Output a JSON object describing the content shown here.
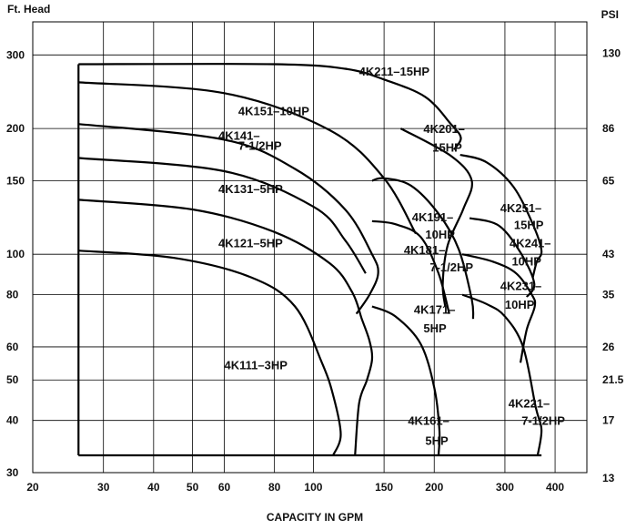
{
  "chart_data": {
    "type": "line",
    "xlabel": "CAPACITY IN GPM",
    "ylabel_left": "Ft. Head",
    "ylabel_right": "PSI",
    "x_scale": "log",
    "y_scale": "log",
    "xlim": [
      20,
      480
    ],
    "ylim": [
      30,
      360
    ],
    "grid": true,
    "x_ticks": [
      20,
      30,
      40,
      50,
      60,
      80,
      100,
      150,
      200,
      300,
      400
    ],
    "y_ticks": [
      30,
      40,
      50,
      60,
      80,
      100,
      150,
      200,
      300
    ],
    "psi_ticks": [
      {
        "head": 30,
        "label": "13"
      },
      {
        "head": 40,
        "label": "17"
      },
      {
        "head": 50,
        "label": "21.5"
      },
      {
        "head": 60,
        "label": "26"
      },
      {
        "head": 80,
        "label": "35"
      },
      {
        "head": 100,
        "label": "43"
      },
      {
        "head": 150,
        "label": "65"
      },
      {
        "head": 200,
        "label": "86"
      },
      {
        "head": 300,
        "label": "130"
      }
    ],
    "series": [
      {
        "name": "4K111–3HP",
        "x": [
          26,
          45,
          70,
          90,
          105,
          112,
          117,
          112
        ],
        "y": [
          102,
          98,
          88,
          75,
          55,
          46,
          37,
          33
        ]
      },
      {
        "name": "4K121–5HP",
        "x": [
          26,
          50,
          80,
          110,
          125,
          132,
          138,
          140,
          136,
          130,
          127
        ],
        "y": [
          135,
          128,
          113,
          95,
          81,
          70,
          62,
          56,
          50,
          44,
          33
        ]
      },
      {
        "name": "4K131–5HP",
        "x": [
          26,
          60,
          100,
          120,
          135
        ],
        "y": [
          170,
          158,
          130,
          108,
          90
        ]
      },
      {
        "name": "4K141–7-1/2HP",
        "x": [
          26,
          60,
          90,
          120,
          140,
          145,
          138,
          128
        ],
        "y": [
          205,
          188,
          160,
          128,
          100,
          90,
          80,
          72
        ]
      },
      {
        "name": "4K151–10HP",
        "x": [
          26,
          60,
          110,
          150,
          180
        ],
        "y": [
          258,
          243,
          198,
          152,
          112
        ]
      },
      {
        "name": "4K211–15HP",
        "x": [
          26,
          80,
          120,
          150,
          190,
          220,
          233,
          224
        ],
        "y": [
          285,
          285,
          278,
          262,
          238,
          205,
          190,
          178
        ]
      },
      {
        "name": "4K201–15HP",
        "x": [
          165,
          220,
          248,
          236,
          216,
          210,
          213
        ],
        "y": [
          200,
          172,
          150,
          128,
          105,
          85,
          75
        ]
      },
      {
        "name": "4K191–10HP",
        "x": [
          140,
          150,
          175,
          205,
          230,
          248,
          250
        ],
        "y": [
          150,
          152,
          146,
          125,
          103,
          78,
          70
        ]
      },
      {
        "name": "4K181–7-1/2HP",
        "x": [
          140,
          160,
          185,
          205,
          218
        ],
        "y": [
          120,
          118,
          110,
          90,
          72
        ]
      },
      {
        "name": "4K171–5HP",
        "x": [
          140,
          160,
          185,
          200,
          206,
          205
        ],
        "y": [
          75,
          71,
          61,
          48,
          38,
          33
        ]
      },
      {
        "name": "4K251–15HP",
        "x": [
          232,
          270,
          315,
          352,
          370,
          360,
          352
        ],
        "y": [
          173,
          166,
          145,
          118,
          102,
          96,
          88
        ]
      },
      {
        "name": "4K241–10HP",
        "x": [
          245,
          290,
          330,
          355,
          340
        ],
        "y": [
          122,
          117,
          100,
          85,
          79
        ]
      },
      {
        "name": "4K231–10HP",
        "x": [
          235,
          280,
          320,
          350,
          356,
          340,
          328
        ],
        "y": [
          100,
          96,
          90,
          80,
          75,
          66,
          55
        ]
      },
      {
        "name": "4K221–7-1/2HP",
        "x": [
          235,
          270,
          300,
          333,
          358,
          370,
          362
        ],
        "y": [
          80,
          76,
          71,
          60,
          43,
          38,
          33
        ]
      }
    ],
    "labels": [
      {
        "text": "4K211–15HP",
        "x": 130,
        "y": 268
      },
      {
        "text": "4K151–10HP",
        "x": 65,
        "y": 215
      },
      {
        "text": "4K141–",
        "x": 58,
        "y": 188
      },
      {
        "text": "7-1/2HP",
        "x": 65,
        "y": 178
      },
      {
        "text": "4K201–",
        "x": 188,
        "y": 195
      },
      {
        "text": "15HP",
        "x": 198,
        "y": 176
      },
      {
        "text": "4K131–5HP",
        "x": 58,
        "y": 140
      },
      {
        "text": "4K191–",
        "x": 176,
        "y": 120
      },
      {
        "text": "10HP",
        "x": 190,
        "y": 109
      },
      {
        "text": "4K251–",
        "x": 292,
        "y": 126
      },
      {
        "text": "15HP",
        "x": 316,
        "y": 115
      },
      {
        "text": "4K121–5HP",
        "x": 58,
        "y": 104
      },
      {
        "text": "4K181–",
        "x": 168,
        "y": 100
      },
      {
        "text": "7-1/2HP",
        "x": 195,
        "y": 91
      },
      {
        "text": "4K241–",
        "x": 308,
        "y": 104
      },
      {
        "text": "10HP",
        "x": 312,
        "y": 94
      },
      {
        "text": "4K231–",
        "x": 292,
        "y": 82
      },
      {
        "text": "10HP",
        "x": 300,
        "y": 74
      },
      {
        "text": "4K171–",
        "x": 178,
        "y": 72
      },
      {
        "text": "5HP",
        "x": 188,
        "y": 65
      },
      {
        "text": "4K111–3HP",
        "x": 60,
        "y": 53
      },
      {
        "text": "4K221–",
        "x": 306,
        "y": 43
      },
      {
        "text": "7-1/2HP",
        "x": 330,
        "y": 39
      },
      {
        "text": "4K161–",
        "x": 172,
        "y": 39
      },
      {
        "text": "5HP",
        "x": 190,
        "y": 35
      }
    ],
    "outline": {
      "left_x": 26,
      "bottom_y": 33,
      "top_y": 285
    }
  }
}
